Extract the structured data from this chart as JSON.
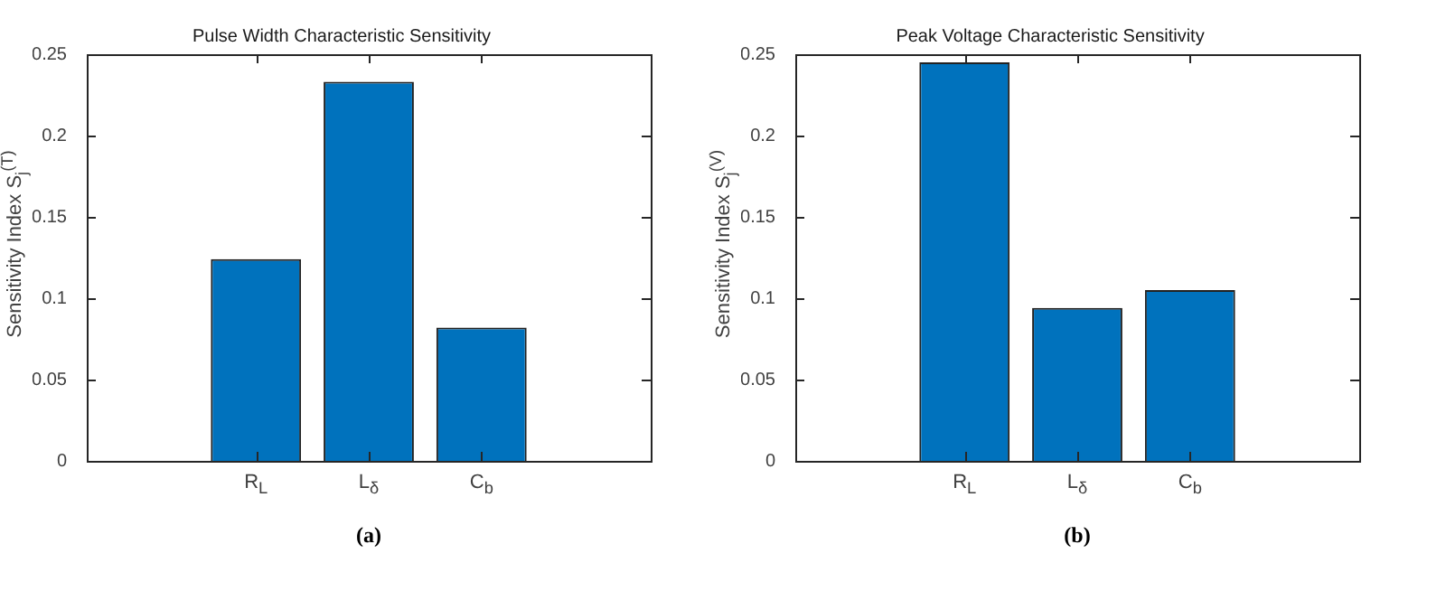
{
  "chart_data": [
    {
      "type": "bar",
      "title": "Pulse Width Characteristic Sensitivity",
      "ylabel": "Sensitivity Index S$_{j}$$^{(T)}$",
      "categories": [
        "R$_{L}$",
        "L$_{δ}$",
        "C$_{b}$"
      ],
      "values": [
        0.124,
        0.233,
        0.082
      ],
      "color": "#0072bd",
      "ylim": [
        0,
        0.25
      ],
      "yticks": [
        0,
        0.05,
        0.1,
        0.15,
        0.2,
        0.25
      ],
      "annotations": [
        "(a)"
      ]
    },
    {
      "type": "bar",
      "title": "Peak Voltage Characteristic Sensitivity",
      "ylabel": "Sensitivity Index S$_{j}$$^{(V)}$",
      "categories": [
        "R$_{L}$",
        "L$_{δ}$",
        "C$_{b}$"
      ],
      "values": [
        0.245,
        0.094,
        0.105
      ],
      "color": "#0072bd",
      "ylim": [
        0,
        0.25
      ],
      "yticks": [
        0,
        0.05,
        0.1,
        0.15,
        0.2,
        0.25
      ],
      "annotations": [
        "(b)"
      ]
    }
  ]
}
